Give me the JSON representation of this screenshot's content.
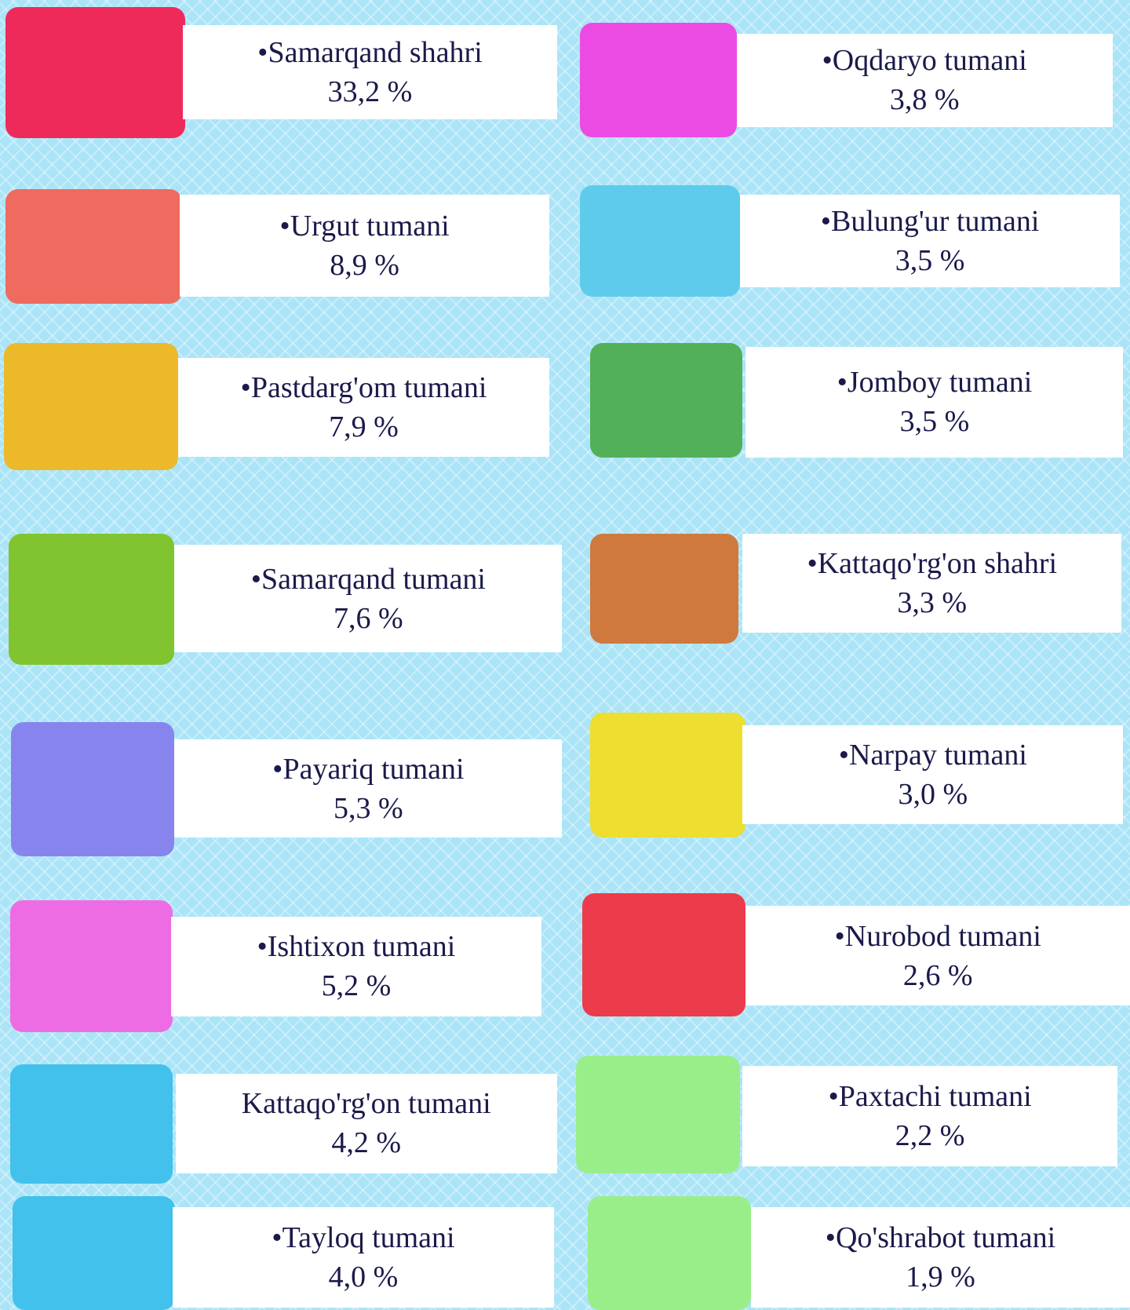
{
  "items": [
    {
      "label": "•Samarqand shahri",
      "value": "33,2 %",
      "color": "#ee2a5b"
    },
    {
      "label": "•Urgut tumani",
      "value": "8,9 %",
      "color": "#ef6b60"
    },
    {
      "label": "•Pastdarg'om tumani",
      "value": "7,9 %",
      "color": "#ecb92a"
    },
    {
      "label": "•Samarqand tumani",
      "value": "7,6 %",
      "color": "#80c42f"
    },
    {
      "label": "•Payariq tumani",
      "value": "5,3 %",
      "color": "#8785ed"
    },
    {
      "label": "•Ishtixon tumani",
      "value": "5,2 %",
      "color": "#ee6ce3"
    },
    {
      "label": "Kattaqo'rg'on tumani",
      "value": "4,2 %",
      "color": "#42c1ec"
    },
    {
      "label": "•Tayloq tumani",
      "value": "4,0 %",
      "color": "#42c1ec"
    },
    {
      "label": "•Oqdaryo tumani",
      "value": "3,8 %",
      "color": "#ec4be3"
    },
    {
      "label": "•Bulung'ur tumani",
      "value": "3,5 %",
      "color": "#5ecbec"
    },
    {
      "label": "•Jomboy tumani",
      "value": "3,5 %",
      "color": "#52b058"
    },
    {
      "label": "•Kattaqo'rg'on shahri",
      "value": "3,3 %",
      "color": "#d0793e"
    },
    {
      "label": "•Narpay tumani",
      "value": "3,0 %",
      "color": "#edde2f"
    },
    {
      "label": "•Nurobod tumani",
      "value": "2,6 %",
      "color": "#ec3b4b"
    },
    {
      "label": "•Paxtachi tumani",
      "value": "2,2 %",
      "color": "#9aee8a"
    },
    {
      "label": "•Qo'shrabot tumani",
      "value": "1,9 %",
      "color": "#9aee8a"
    }
  ]
}
